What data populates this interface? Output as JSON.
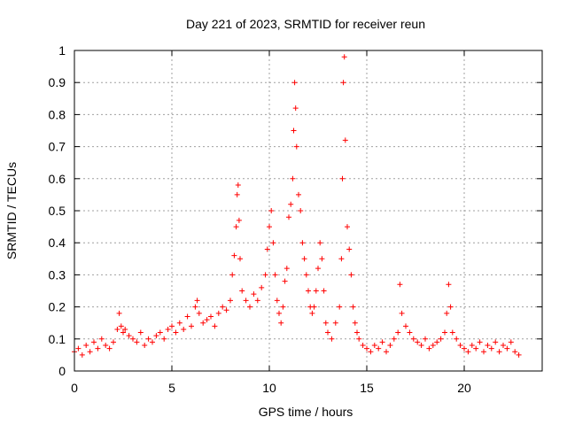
{
  "chart_data": {
    "type": "scatter",
    "title": "Day 221 of 2023, SRMTID for receiver reun",
    "xlabel": "GPS time / hours",
    "ylabel": "SRMTID / TECUs",
    "xlim": [
      0,
      24
    ],
    "ylim": [
      0,
      1
    ],
    "xticks": [
      0,
      5,
      10,
      15,
      20
    ],
    "yticks": [
      0,
      0.1,
      0.2,
      0.3,
      0.4,
      0.5,
      0.6,
      0.7,
      0.8,
      0.9,
      1
    ],
    "grid": true,
    "marker": "+",
    "color": "#ff0000",
    "series": [
      {
        "name": "SRMTID",
        "x": [
          0.0,
          0.2,
          0.4,
          0.6,
          0.8,
          1.0,
          1.2,
          1.4,
          1.6,
          1.8,
          2.0,
          2.2,
          2.3,
          2.4,
          2.5,
          2.6,
          2.8,
          3.0,
          3.2,
          3.4,
          3.6,
          3.8,
          4.0,
          4.2,
          4.4,
          4.6,
          4.8,
          5.0,
          5.2,
          5.4,
          5.6,
          5.8,
          6.0,
          6.2,
          6.3,
          6.4,
          6.6,
          6.8,
          7.0,
          7.2,
          7.4,
          7.6,
          7.8,
          8.0,
          8.1,
          8.2,
          8.3,
          8.35,
          8.4,
          8.45,
          8.5,
          8.6,
          8.8,
          9.0,
          9.2,
          9.4,
          9.6,
          9.8,
          9.9,
          10.0,
          10.1,
          10.2,
          10.3,
          10.4,
          10.5,
          10.6,
          10.7,
          10.8,
          10.9,
          11.0,
          11.1,
          11.2,
          11.25,
          11.3,
          11.35,
          11.4,
          11.5,
          11.6,
          11.7,
          11.8,
          11.9,
          12.0,
          12.1,
          12.2,
          12.3,
          12.4,
          12.5,
          12.6,
          12.7,
          12.8,
          12.9,
          13.0,
          13.2,
          13.4,
          13.6,
          13.7,
          13.75,
          13.8,
          13.85,
          13.9,
          14.0,
          14.1,
          14.2,
          14.3,
          14.4,
          14.5,
          14.6,
          14.8,
          15.0,
          15.2,
          15.4,
          15.6,
          15.8,
          16.0,
          16.2,
          16.4,
          16.6,
          16.7,
          16.8,
          17.0,
          17.2,
          17.4,
          17.6,
          17.8,
          18.0,
          18.2,
          18.4,
          18.6,
          18.8,
          19.0,
          19.1,
          19.2,
          19.3,
          19.4,
          19.6,
          19.8,
          20.0,
          20.2,
          20.4,
          20.6,
          20.8,
          21.0,
          21.2,
          21.4,
          21.6,
          21.8,
          22.0,
          22.2,
          22.4,
          22.6,
          22.8
        ],
        "y": [
          0.06,
          0.07,
          0.05,
          0.08,
          0.06,
          0.09,
          0.07,
          0.1,
          0.08,
          0.07,
          0.09,
          0.13,
          0.18,
          0.14,
          0.12,
          0.13,
          0.11,
          0.1,
          0.09,
          0.12,
          0.08,
          0.1,
          0.09,
          0.11,
          0.12,
          0.1,
          0.13,
          0.14,
          0.12,
          0.15,
          0.13,
          0.17,
          0.14,
          0.2,
          0.22,
          0.18,
          0.15,
          0.16,
          0.17,
          0.14,
          0.18,
          0.2,
          0.19,
          0.22,
          0.3,
          0.36,
          0.45,
          0.55,
          0.58,
          0.47,
          0.35,
          0.25,
          0.22,
          0.2,
          0.24,
          0.22,
          0.26,
          0.3,
          0.38,
          0.45,
          0.5,
          0.4,
          0.3,
          0.22,
          0.18,
          0.15,
          0.2,
          0.28,
          0.32,
          0.48,
          0.52,
          0.6,
          0.75,
          0.9,
          0.82,
          0.7,
          0.55,
          0.5,
          0.4,
          0.35,
          0.3,
          0.25,
          0.2,
          0.18,
          0.2,
          0.25,
          0.32,
          0.4,
          0.35,
          0.25,
          0.15,
          0.12,
          0.1,
          0.15,
          0.2,
          0.35,
          0.6,
          0.9,
          0.98,
          0.72,
          0.45,
          0.38,
          0.3,
          0.2,
          0.15,
          0.12,
          0.1,
          0.08,
          0.07,
          0.06,
          0.08,
          0.07,
          0.09,
          0.06,
          0.08,
          0.1,
          0.12,
          0.27,
          0.18,
          0.14,
          0.12,
          0.1,
          0.09,
          0.08,
          0.1,
          0.07,
          0.08,
          0.09,
          0.1,
          0.12,
          0.18,
          0.27,
          0.2,
          0.12,
          0.1,
          0.08,
          0.07,
          0.06,
          0.08,
          0.07,
          0.09,
          0.06,
          0.08,
          0.07,
          0.09,
          0.06,
          0.08,
          0.07,
          0.09,
          0.06,
          0.05
        ]
      }
    ]
  }
}
